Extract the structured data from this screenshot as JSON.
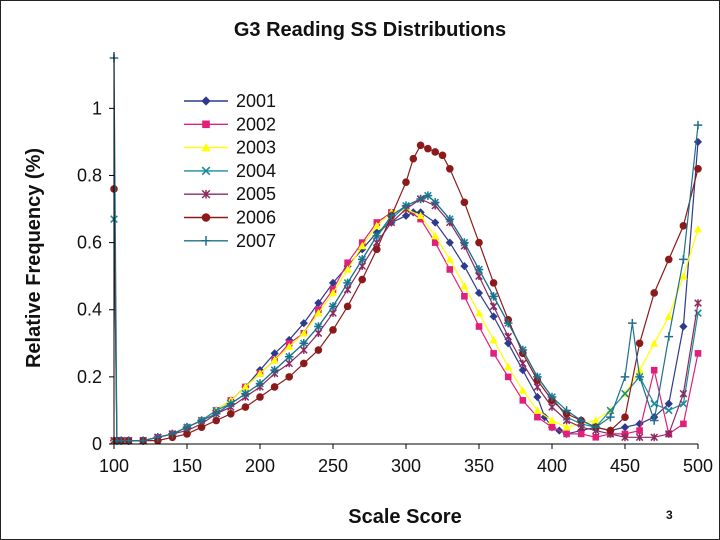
{
  "page_number": "3",
  "chart_data": {
    "type": "line",
    "title": "G3 Reading SS Distributions",
    "xlabel": "Scale Score",
    "ylabel": "Relative Frequency (%)",
    "xlim": [
      100,
      500
    ],
    "ylim": [
      0,
      1.15
    ],
    "xticks": [
      100,
      150,
      200,
      250,
      300,
      350,
      400,
      450,
      500
    ],
    "yticks": [
      0,
      0.2,
      0.4,
      0.6,
      0.8,
      1
    ],
    "ytick_labels": [
      "0",
      "0.2",
      "0.4",
      "0.6",
      "0.8",
      "1"
    ],
    "legend_position": "top-left",
    "series": [
      {
        "name": "2001",
        "color": "#2e3a8c",
        "marker": "diamond",
        "x": [
          100,
          102,
          110,
          120,
          130,
          140,
          150,
          160,
          170,
          180,
          190,
          200,
          210,
          220,
          230,
          240,
          250,
          260,
          270,
          280,
          290,
          300,
          305,
          310,
          320,
          330,
          340,
          350,
          360,
          370,
          380,
          390,
          395,
          400,
          405,
          410,
          420,
          430,
          440,
          450,
          460,
          470,
          480,
          490,
          500
        ],
        "y": [
          0.01,
          0.01,
          0.01,
          0.01,
          0.02,
          0.03,
          0.05,
          0.07,
          0.1,
          0.13,
          0.17,
          0.22,
          0.27,
          0.31,
          0.36,
          0.42,
          0.48,
          0.53,
          0.58,
          0.63,
          0.66,
          0.68,
          0.69,
          0.69,
          0.66,
          0.6,
          0.53,
          0.45,
          0.38,
          0.3,
          0.22,
          0.14,
          0.08,
          0.05,
          0.04,
          0.03,
          0.04,
          0.05,
          0.04,
          0.05,
          0.06,
          0.08,
          0.12,
          0.35,
          0.9
        ]
      },
      {
        "name": "2002",
        "color": "#e0207a",
        "marker": "square",
        "x": [
          100,
          105,
          110,
          120,
          130,
          140,
          150,
          160,
          170,
          180,
          190,
          200,
          210,
          220,
          230,
          240,
          250,
          260,
          270,
          280,
          290,
          300,
          310,
          320,
          330,
          340,
          350,
          360,
          370,
          380,
          390,
          400,
          410,
          420,
          430,
          440,
          450,
          460,
          470,
          480,
          490,
          500
        ],
        "y": [
          0.01,
          0.01,
          0.01,
          0.01,
          0.02,
          0.03,
          0.05,
          0.07,
          0.1,
          0.13,
          0.17,
          0.21,
          0.25,
          0.3,
          0.33,
          0.4,
          0.46,
          0.54,
          0.6,
          0.66,
          0.69,
          0.7,
          0.67,
          0.6,
          0.52,
          0.44,
          0.35,
          0.27,
          0.2,
          0.13,
          0.08,
          0.05,
          0.03,
          0.03,
          0.02,
          0.03,
          0.03,
          0.04,
          0.22,
          0.03,
          0.06,
          0.27
        ]
      },
      {
        "name": "2003",
        "color": "#ffff00",
        "marker": "triangle",
        "x": [
          100,
          105,
          110,
          120,
          130,
          140,
          150,
          160,
          170,
          180,
          190,
          200,
          210,
          220,
          230,
          240,
          250,
          260,
          270,
          280,
          290,
          300,
          310,
          320,
          330,
          340,
          350,
          360,
          370,
          380,
          390,
          400,
          410,
          420,
          430,
          440,
          450,
          460,
          470,
          480,
          490,
          500
        ],
        "y": [
          0.01,
          0.01,
          0.01,
          0.01,
          0.02,
          0.03,
          0.05,
          0.07,
          0.1,
          0.13,
          0.17,
          0.21,
          0.25,
          0.29,
          0.33,
          0.39,
          0.45,
          0.52,
          0.59,
          0.65,
          0.69,
          0.7,
          0.68,
          0.62,
          0.55,
          0.47,
          0.39,
          0.31,
          0.23,
          0.16,
          0.1,
          0.07,
          0.05,
          0.06,
          0.07,
          0.1,
          0.15,
          0.22,
          0.3,
          0.38,
          0.5,
          0.64
        ]
      },
      {
        "name": "2004",
        "color": "#1a8c9c",
        "marker": "x",
        "x": [
          100,
          102,
          105,
          110,
          120,
          130,
          140,
          150,
          160,
          170,
          180,
          190,
          200,
          210,
          220,
          230,
          240,
          250,
          260,
          270,
          280,
          290,
          300,
          310,
          315,
          320,
          330,
          340,
          350,
          360,
          370,
          380,
          390,
          400,
          410,
          420,
          430,
          440,
          450,
          460,
          470,
          480,
          490,
          500
        ],
        "y": [
          0.67,
          0.01,
          0.01,
          0.01,
          0.01,
          0.02,
          0.03,
          0.05,
          0.07,
          0.1,
          0.12,
          0.15,
          0.18,
          0.22,
          0.26,
          0.3,
          0.35,
          0.41,
          0.48,
          0.55,
          0.62,
          0.67,
          0.71,
          0.73,
          0.74,
          0.72,
          0.67,
          0.6,
          0.52,
          0.44,
          0.36,
          0.28,
          0.2,
          0.14,
          0.08,
          0.06,
          0.05,
          0.1,
          0.15,
          0.2,
          0.12,
          0.1,
          0.12,
          0.39
        ]
      },
      {
        "name": "2005",
        "color": "#8c2a60",
        "marker": "asterisk",
        "x": [
          100,
          105,
          110,
          120,
          130,
          140,
          150,
          160,
          170,
          180,
          190,
          200,
          210,
          220,
          230,
          240,
          250,
          260,
          270,
          280,
          290,
          300,
          310,
          320,
          330,
          340,
          350,
          360,
          370,
          380,
          390,
          400,
          410,
          420,
          430,
          440,
          450,
          460,
          470,
          480,
          490,
          500
        ],
        "y": [
          0.01,
          0.01,
          0.01,
          0.01,
          0.02,
          0.03,
          0.04,
          0.06,
          0.09,
          0.11,
          0.14,
          0.17,
          0.21,
          0.24,
          0.28,
          0.33,
          0.39,
          0.46,
          0.53,
          0.6,
          0.66,
          0.7,
          0.73,
          0.71,
          0.66,
          0.59,
          0.5,
          0.41,
          0.32,
          0.24,
          0.17,
          0.11,
          0.07,
          0.05,
          0.04,
          0.03,
          0.02,
          0.02,
          0.02,
          0.03,
          0.15,
          0.42
        ]
      },
      {
        "name": "2006",
        "color": "#8c1a1a",
        "marker": "circle",
        "x": [
          100,
          102,
          105,
          110,
          120,
          130,
          140,
          150,
          160,
          170,
          180,
          190,
          200,
          210,
          220,
          230,
          240,
          250,
          260,
          270,
          280,
          290,
          300,
          305,
          310,
          315,
          320,
          325,
          330,
          340,
          350,
          360,
          370,
          380,
          390,
          400,
          410,
          420,
          430,
          440,
          450,
          460,
          470,
          480,
          490,
          500
        ],
        "y": [
          0.76,
          0.01,
          0.01,
          0.01,
          0.01,
          0.01,
          0.02,
          0.03,
          0.05,
          0.07,
          0.09,
          0.11,
          0.14,
          0.17,
          0.2,
          0.24,
          0.28,
          0.34,
          0.41,
          0.49,
          0.58,
          0.68,
          0.78,
          0.85,
          0.89,
          0.88,
          0.87,
          0.86,
          0.82,
          0.72,
          0.6,
          0.48,
          0.37,
          0.27,
          0.19,
          0.13,
          0.09,
          0.07,
          0.05,
          0.04,
          0.08,
          0.3,
          0.45,
          0.55,
          0.65,
          0.82
        ]
      },
      {
        "name": "2007",
        "color": "#1f6f8c",
        "marker": "plus",
        "x": [
          100,
          102,
          105,
          110,
          120,
          130,
          140,
          150,
          160,
          170,
          180,
          190,
          200,
          210,
          220,
          230,
          240,
          250,
          260,
          270,
          280,
          290,
          300,
          310,
          315,
          320,
          330,
          340,
          350,
          360,
          370,
          380,
          390,
          400,
          410,
          420,
          430,
          440,
          450,
          455,
          460,
          470,
          480,
          490,
          500
        ],
        "y": [
          1.15,
          0.01,
          0.01,
          0.01,
          0.01,
          0.02,
          0.03,
          0.05,
          0.07,
          0.09,
          0.12,
          0.15,
          0.18,
          0.22,
          0.26,
          0.3,
          0.35,
          0.41,
          0.48,
          0.55,
          0.62,
          0.68,
          0.71,
          0.73,
          0.74,
          0.72,
          0.67,
          0.6,
          0.52,
          0.44,
          0.36,
          0.28,
          0.2,
          0.14,
          0.1,
          0.07,
          0.05,
          0.08,
          0.2,
          0.36,
          0.2,
          0.07,
          0.32,
          0.55,
          0.95
        ]
      }
    ]
  }
}
